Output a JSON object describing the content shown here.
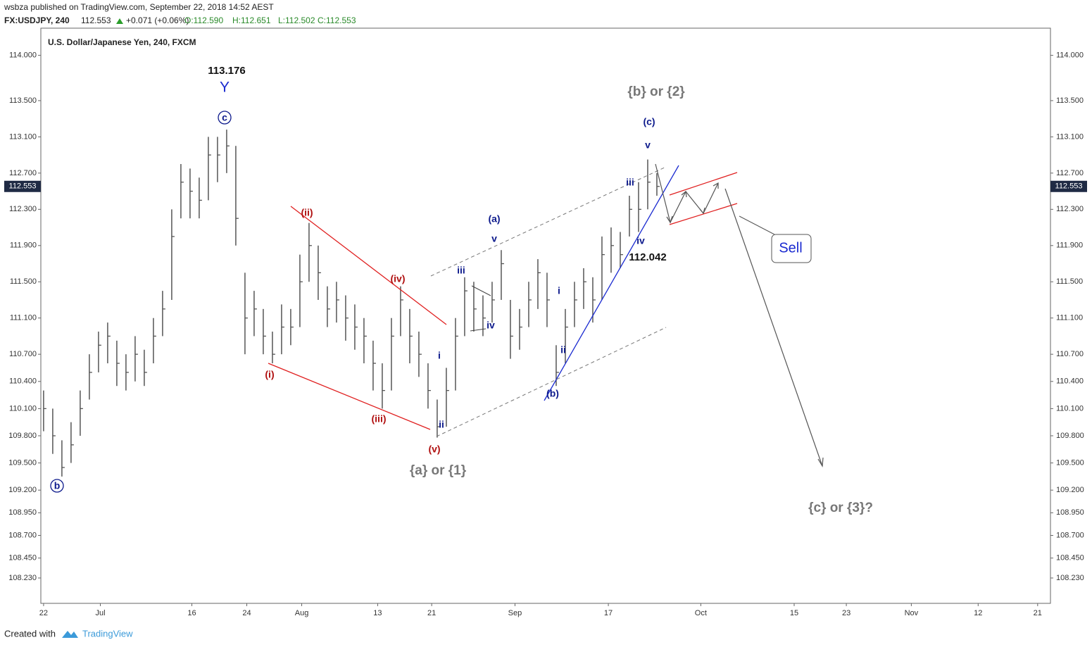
{
  "header": {
    "published": "wsbza published on TradingView.com, September 22, 2018 14:52 AEST",
    "symbol": "FX:USDJPY, 240",
    "price": "112.553",
    "change": "+0.071 (+0.06%)",
    "open": "O:112.590",
    "high": "H:112.651",
    "low": "L:112.502",
    "close": "C:112.553"
  },
  "footer": {
    "created": "Created with",
    "brand": "TradingView"
  },
  "chart_data": {
    "type": "ohlc",
    "title": "U.S. Dollar/Japanese Yen, 240, FXCM",
    "x": [
      0,
      1,
      2,
      3,
      4,
      5,
      6,
      7,
      8,
      9,
      10,
      11,
      12,
      13,
      14,
      15,
      16,
      17,
      18,
      19,
      20,
      21,
      22,
      23,
      24,
      25,
      26,
      27,
      28,
      29,
      30,
      31,
      32,
      33,
      34,
      35,
      36,
      37,
      38,
      39,
      40,
      41,
      42,
      43,
      44,
      45,
      46,
      47,
      48,
      49,
      50,
      51,
      52,
      53,
      54,
      55,
      56,
      57,
      58,
      59,
      60,
      61,
      62,
      63,
      64,
      65,
      66,
      67
    ],
    "high": [
      110.3,
      110.1,
      109.75,
      109.95,
      110.3,
      110.7,
      110.95,
      111.05,
      110.85,
      110.7,
      110.9,
      110.75,
      111.1,
      111.4,
      112.3,
      112.8,
      112.75,
      112.65,
      113.1,
      113.1,
      113.18,
      113.0,
      111.6,
      111.4,
      111.2,
      110.95,
      111.25,
      111.2,
      111.8,
      112.15,
      111.9,
      111.45,
      111.5,
      111.35,
      111.25,
      111.1,
      110.85,
      110.6,
      111.1,
      111.45,
      111.2,
      110.95,
      110.6,
      110.2,
      110.55,
      111.1,
      111.55,
      111.5,
      111.35,
      111.5,
      111.85,
      111.3,
      111.2,
      111.5,
      111.75,
      111.6,
      110.8,
      111.2,
      111.5,
      111.65,
      111.55,
      112.0,
      112.1,
      112.05,
      112.45,
      112.6,
      112.85,
      112.7
    ],
    "low": [
      109.85,
      109.6,
      109.35,
      109.5,
      109.8,
      110.2,
      110.5,
      110.6,
      110.35,
      110.3,
      110.4,
      110.35,
      110.6,
      110.9,
      111.3,
      112.2,
      112.2,
      112.2,
      112.4,
      112.6,
      112.7,
      111.9,
      110.7,
      110.9,
      110.7,
      110.6,
      110.7,
      110.8,
      111.0,
      111.5,
      111.3,
      111.0,
      111.05,
      110.85,
      110.75,
      110.6,
      110.3,
      110.1,
      110.3,
      110.9,
      110.6,
      110.45,
      110.1,
      109.78,
      109.9,
      110.3,
      110.9,
      110.95,
      110.9,
      111.05,
      111.3,
      110.65,
      110.75,
      111.0,
      111.2,
      111.0,
      110.35,
      110.6,
      111.0,
      111.2,
      111.05,
      111.3,
      111.6,
      111.65,
      112.0,
      112.05,
      112.3,
      112.45
    ],
    "close": [
      110.1,
      109.8,
      109.45,
      109.7,
      110.1,
      110.5,
      110.8,
      110.9,
      110.6,
      110.5,
      110.7,
      110.5,
      110.9,
      111.2,
      112.0,
      112.6,
      112.5,
      112.4,
      112.9,
      112.9,
      113.0,
      112.2,
      111.1,
      111.2,
      110.9,
      110.7,
      111.0,
      111.0,
      111.5,
      111.9,
      111.6,
      111.2,
      111.3,
      111.1,
      111.0,
      110.9,
      110.6,
      110.3,
      110.9,
      111.3,
      110.9,
      110.7,
      110.3,
      109.9,
      110.3,
      110.9,
      111.4,
      111.2,
      111.1,
      111.3,
      111.7,
      110.9,
      111.0,
      111.3,
      111.6,
      111.3,
      110.5,
      111.0,
      111.3,
      111.5,
      111.3,
      111.8,
      111.9,
      111.8,
      112.3,
      112.3,
      112.6,
      112.553
    ],
    "last": 112.553,
    "ylim": [
      107.95,
      114.3
    ],
    "yticks": [
      {
        "value": 114,
        "label": "114.000"
      },
      {
        "value": 113.5,
        "label": "113.500"
      },
      {
        "value": 113.1,
        "label": "113.100"
      },
      {
        "value": 112.7,
        "label": "112.700"
      },
      {
        "value": 112.3,
        "label": "112.300"
      },
      {
        "value": 111.9,
        "label": "111.900"
      },
      {
        "value": 111.5,
        "label": "111.500"
      },
      {
        "value": 111.1,
        "label": "111.100"
      },
      {
        "value": 110.7,
        "label": "110.700"
      },
      {
        "value": 110.4,
        "label": "110.400"
      },
      {
        "value": 110.1,
        "label": "110.100"
      },
      {
        "value": 109.8,
        "label": "109.800"
      },
      {
        "value": 109.5,
        "label": "109.500"
      },
      {
        "value": 109.2,
        "label": "109.200"
      },
      {
        "value": 108.95,
        "label": "108.950"
      },
      {
        "value": 108.7,
        "label": "108.700"
      },
      {
        "value": 108.45,
        "label": "108.450"
      },
      {
        "value": 108.23,
        "label": "108.230"
      }
    ],
    "xlim": [
      -0.3,
      110
    ],
    "xticks": [
      {
        "value": 0,
        "label": "22"
      },
      {
        "value": 6.2,
        "label": "Jul"
      },
      {
        "value": 16.2,
        "label": "16"
      },
      {
        "value": 22.2,
        "label": "24"
      },
      {
        "value": 28.2,
        "label": "Aug"
      },
      {
        "value": 36.5,
        "label": "13"
      },
      {
        "value": 42.4,
        "label": "21"
      },
      {
        "value": 51.5,
        "label": "Sep"
      },
      {
        "value": 61.7,
        "label": "17"
      },
      {
        "value": 71.8,
        "label": "Oct"
      },
      {
        "value": 82,
        "label": "15"
      },
      {
        "value": 87.7,
        "label": "23"
      },
      {
        "value": 94.8,
        "label": "Nov"
      },
      {
        "value": 102.1,
        "label": "12"
      },
      {
        "value": 108.6,
        "label": "21"
      }
    ],
    "color": "#555555",
    "annotations": [
      "113.176",
      "Y",
      "c",
      "b",
      "(ii)",
      "(iv)",
      "(i)",
      "(iii)",
      "(v)",
      "{a} or {1}",
      "(a)",
      "v",
      "iii",
      "iv",
      "i",
      "ii",
      "(b)",
      "i",
      "ii",
      "{b} or {2}",
      "(c)",
      "v",
      "iii",
      "iv",
      "112.042",
      "Sell",
      "{c} or {3}?"
    ]
  }
}
